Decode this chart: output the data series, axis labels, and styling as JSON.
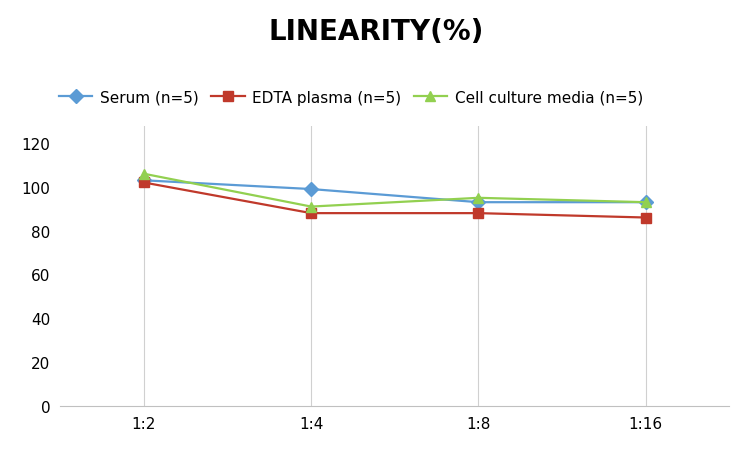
{
  "title": "LINEARITY(%)",
  "x_labels": [
    "1:2",
    "1:4",
    "1:8",
    "1:16"
  ],
  "series": [
    {
      "label": "Serum (n=5)",
      "values": [
        103,
        99,
        93,
        93
      ],
      "color": "#5B9BD5",
      "marker": "D",
      "marker_color": "#5B9BD5"
    },
    {
      "label": "EDTA plasma (n=5)",
      "values": [
        102,
        88,
        88,
        86
      ],
      "color": "#C0392B",
      "marker": "s",
      "marker_color": "#C0392B"
    },
    {
      "label": "Cell culture media (n=5)",
      "values": [
        106,
        91,
        95,
        93
      ],
      "color": "#92D050",
      "marker": "^",
      "marker_color": "#92D050"
    }
  ],
  "ylim": [
    0,
    128
  ],
  "yticks": [
    0,
    20,
    40,
    60,
    80,
    100,
    120
  ],
  "background_color": "#ffffff",
  "title_fontsize": 20,
  "legend_fontsize": 11,
  "tick_fontsize": 11,
  "grid_color": "#d0d0d0",
  "linewidth": 1.6,
  "markersize": 7
}
